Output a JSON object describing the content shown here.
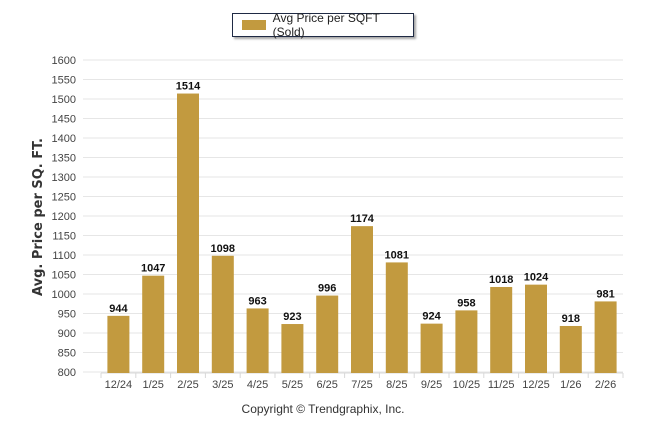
{
  "chart_data": {
    "type": "bar",
    "title": "",
    "xlabel": "",
    "ylabel": "Avg. Price per SQ. FT.",
    "ylim": [
      800,
      1600
    ],
    "ytick_step": 50,
    "grid": true,
    "legend_position": "top-center",
    "categories": [
      "12/24",
      "1/25",
      "2/25",
      "3/25",
      "4/25",
      "5/25",
      "6/25",
      "7/25",
      "8/25",
      "9/25",
      "10/25",
      "11/25",
      "12/25",
      "1/26",
      "2/26"
    ],
    "series": [
      {
        "name": "Avg Price per SQFT (Sold)",
        "color": "#c29a3f",
        "values": [
          944,
          1047,
          1514,
          1098,
          963,
          923,
          996,
          1174,
          1081,
          924,
          958,
          1018,
          1024,
          918,
          981
        ]
      }
    ]
  },
  "footer": {
    "copyright": "Copyright © Trendgraphix, Inc."
  }
}
